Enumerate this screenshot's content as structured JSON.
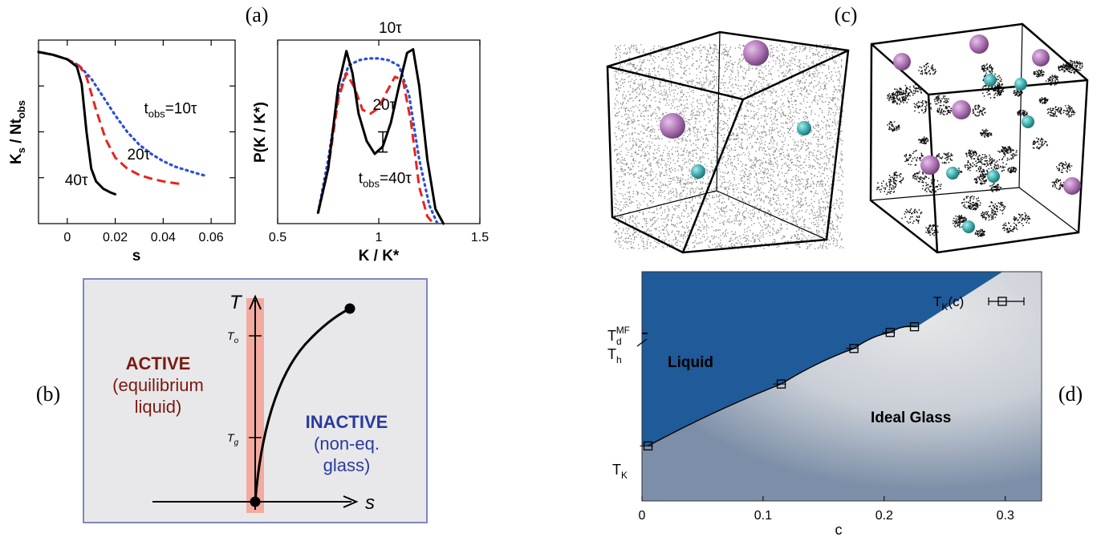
{
  "panel_labels": {
    "a": "(a)",
    "b": "(b)",
    "c": "(c)",
    "d": "(d)"
  },
  "colors": {
    "liquid_blue": "#1f5a99",
    "glass_grey": "#e2e3e5",
    "panel_b_border": "#7f86c4",
    "panel_b_bg": "#e8e8ea",
    "active_text": "#7a1a10",
    "inactive_text": "#2a3a9e",
    "active_band": "#f3aaa0",
    "red_dashed": "#e8231e",
    "blue_dotted": "#2b4fd6",
    "sphere_purple": "#a96fb0",
    "sphere_teal": "#3aa8a8"
  },
  "chart_data": [
    {
      "id": "a-left",
      "type": "line",
      "ylabel": "K_s / Nt_obs",
      "xlabel": "s",
      "xlim": [
        -0.012,
        0.07
      ],
      "x_ticks": [
        "0",
        "0.02",
        "0.04",
        "0.06"
      ],
      "x_tick_values": [
        0,
        0.02,
        0.04,
        0.06
      ],
      "ylim": [
        0,
        1
      ],
      "y_tick_values": [
        0.25,
        0.5,
        0.75
      ],
      "series": [
        {
          "name": "t_obs=10τ",
          "style": "dotted-blue",
          "x": [
            -0.012,
            -0.006,
            0,
            0.005,
            0.01,
            0.015,
            0.02,
            0.025,
            0.03,
            0.035,
            0.04,
            0.045,
            0.05,
            0.055,
            0.058
          ],
          "y": [
            0.935,
            0.92,
            0.895,
            0.86,
            0.79,
            0.69,
            0.59,
            0.5,
            0.43,
            0.38,
            0.34,
            0.31,
            0.29,
            0.27,
            0.26
          ]
        },
        {
          "name": "20τ",
          "style": "dashed-red",
          "x": [
            -0.012,
            -0.006,
            0,
            0.005,
            0.008,
            0.012,
            0.016,
            0.02,
            0.025,
            0.03,
            0.035,
            0.04,
            0.045,
            0.048
          ],
          "y": [
            0.935,
            0.92,
            0.895,
            0.86,
            0.8,
            0.62,
            0.46,
            0.36,
            0.3,
            0.265,
            0.245,
            0.23,
            0.22,
            0.215
          ]
        },
        {
          "name": "40τ",
          "style": "solid-black",
          "x": [
            -0.012,
            -0.006,
            0,
            0.004,
            0.006,
            0.008,
            0.01,
            0.012,
            0.015,
            0.018,
            0.02
          ],
          "y": [
            0.935,
            0.92,
            0.895,
            0.855,
            0.76,
            0.5,
            0.3,
            0.23,
            0.19,
            0.17,
            0.16
          ]
        }
      ],
      "annotations": [
        {
          "text": "t",
          "sub": "obs",
          "rest": "=10τ",
          "x": 0.032,
          "y": 0.6
        },
        {
          "text": "20τ",
          "x": 0.025,
          "y": 0.35
        },
        {
          "text": "40τ",
          "x": -0.001,
          "y": 0.21
        }
      ]
    },
    {
      "id": "a-right",
      "type": "line",
      "ylabel": "P(K / K*)",
      "xlabel": "K / K*",
      "xlim": [
        0.5,
        1.5
      ],
      "x_ticks": [
        "0.5",
        "1",
        "1.5"
      ],
      "x_tick_values": [
        0.5,
        1,
        1.5
      ],
      "ylim": [
        0,
        1
      ],
      "series": [
        {
          "name": "10τ",
          "style": "dotted-blue",
          "x": [
            0.7,
            0.75,
            0.8,
            0.85,
            0.9,
            0.95,
            1.0,
            1.05,
            1.1,
            1.15,
            1.2,
            1.25,
            1.29
          ],
          "y": [
            0.06,
            0.35,
            0.7,
            0.86,
            0.89,
            0.9,
            0.9,
            0.89,
            0.86,
            0.7,
            0.35,
            0.1,
            0.0
          ]
        },
        {
          "name": "20τ",
          "style": "dashed-red",
          "x": [
            0.7,
            0.75,
            0.8,
            0.84,
            0.88,
            0.92,
            0.96,
            1.0,
            1.04,
            1.08,
            1.12,
            1.16,
            1.2,
            1.24,
            1.27
          ],
          "y": [
            0.06,
            0.3,
            0.68,
            0.82,
            0.74,
            0.62,
            0.6,
            0.63,
            0.72,
            0.8,
            0.78,
            0.55,
            0.2,
            0.04,
            0.0
          ]
        },
        {
          "name": "t_obs=40τ",
          "style": "solid-black",
          "x": [
            0.7,
            0.75,
            0.8,
            0.84,
            0.87,
            0.9,
            0.94,
            0.98,
            1.02,
            1.06,
            1.1,
            1.14,
            1.17,
            1.2,
            1.24,
            1.28,
            1.32
          ],
          "y": [
            0.06,
            0.3,
            0.75,
            0.94,
            0.82,
            0.6,
            0.45,
            0.38,
            0.42,
            0.55,
            0.75,
            0.93,
            0.95,
            0.75,
            0.35,
            0.08,
            0.0
          ]
        }
      ],
      "error_bar": {
        "x": 1.02,
        "y": 0.45,
        "low": 0.39,
        "high": 0.5
      },
      "annotations": [
        {
          "text": "10τ",
          "x": 1.0,
          "y": 1.04
        },
        {
          "text": "20τ",
          "x": 0.97,
          "y": 0.62
        },
        {
          "text": "t",
          "sub": "obs",
          "rest": "=40τ",
          "x": 0.9,
          "y": 0.22
        }
      ]
    },
    {
      "id": "d",
      "type": "line",
      "xlabel": "c",
      "x_ticks": [
        "0",
        "0.1",
        "0.2",
        "0.3"
      ],
      "x_tick_values": [
        0,
        0.1,
        0.2,
        0.3
      ],
      "xlim": [
        0,
        0.33
      ],
      "region_labels": [
        "Liquid",
        "Ideal Glass"
      ],
      "legend": "T_K(c)",
      "points": [
        {
          "x": 0.005,
          "y": 0.24
        },
        {
          "x": 0.115,
          "y": 0.51
        },
        {
          "x": 0.175,
          "y": 0.665
        },
        {
          "x": 0.205,
          "y": 0.735
        },
        {
          "x": 0.225,
          "y": 0.76
        }
      ],
      "y_markers": [
        "T_d^MF",
        "T_h",
        "T_K"
      ]
    }
  ],
  "panel_b": {
    "axis_T": "T",
    "axis_s": "s",
    "tick_To": "T",
    "tick_To_sub": "o",
    "tick_Tg": "T",
    "tick_Tg_sub": "g",
    "active": [
      "ACTIVE",
      "(equilibrium",
      "liquid)"
    ],
    "inactive": [
      "INACTIVE",
      "(non-eq.",
      "glass)"
    ]
  },
  "panel_d": {
    "liquid": "Liquid",
    "glass": "Ideal Glass",
    "legend_T": "T",
    "legend_sub": "K",
    "legend_rest": "(c)",
    "Td": "T",
    "Td_sub": "d",
    "Td_sup": "MF",
    "Th": "T",
    "Th_sub": "h",
    "TK": "T",
    "TK_sub": "K"
  }
}
